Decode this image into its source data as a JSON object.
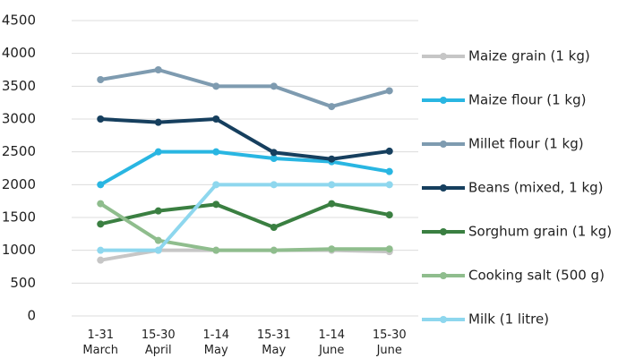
{
  "chart_data": {
    "type": "line",
    "categories": [
      "1-31\nMarch",
      "15-30\nApril",
      "1-14\nMay",
      "15-31\nMay",
      "1-14\nJune",
      "15-30\nJune"
    ],
    "series": [
      {
        "name": "Maize grain (1 kg)",
        "color": "#c6c6c6",
        "values": [
          850,
          1000,
          1000,
          1000,
          1000,
          980
        ]
      },
      {
        "name": "Maize flour (1 kg)",
        "color": "#29b6e2",
        "values": [
          2000,
          2500,
          2500,
          2400,
          2350,
          2200
        ]
      },
      {
        "name": "Millet flour (1 kg)",
        "color": "#7e9bb0",
        "values": [
          3600,
          3750,
          3500,
          3500,
          3190,
          3430
        ]
      },
      {
        "name": "Beans (mixed, 1 kg)",
        "color": "#163f5e",
        "values": [
          3000,
          2950,
          3000,
          2490,
          2390,
          2510
        ]
      },
      {
        "name": "Sorghum grain (1 kg)",
        "color": "#3a7f41",
        "values": [
          1400,
          1600,
          1700,
          1350,
          1710,
          1540
        ]
      },
      {
        "name": "Cooking salt (500 g)",
        "color": "#8fbd8d",
        "values": [
          1710,
          1150,
          1000,
          1000,
          1020,
          1020
        ]
      },
      {
        "name": "Milk (1 litre)",
        "color": "#8ed7ee",
        "values": [
          1000,
          1000,
          2000,
          2000,
          2000,
          2000
        ]
      }
    ],
    "ylim": [
      0,
      4500
    ],
    "yticks": [
      0,
      500,
      1000,
      1500,
      2000,
      2500,
      3000,
      3500,
      4000,
      4500
    ],
    "grid": true,
    "legend": "right"
  }
}
